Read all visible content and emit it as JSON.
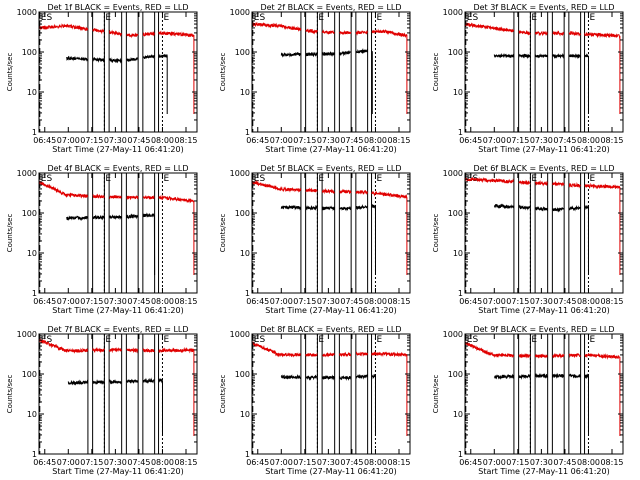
{
  "figure": {
    "background": "#ffffff",
    "axis_color": "#000000",
    "events_color": "#000000",
    "lld_color": "#e00000",
    "marker_color": "#000000"
  },
  "chart_data": [
    {
      "type": "line",
      "title": "Det 1f BLACK = Events, RED = LLD",
      "xlabel": "Start Time (27-May-11 06:41:20)",
      "ylabel": "Counts/sec",
      "yscale": "log",
      "ylim": [
        1,
        1000
      ],
      "xlim": [
        "06:41:20",
        "08:22:00"
      ],
      "x_ticks": [
        "06:45",
        "07:00",
        "07:15",
        "07:30",
        "07:45",
        "08:00",
        "08:15"
      ],
      "y_ticks": [
        "1",
        "10",
        "100",
        "1000"
      ],
      "markers": [
        {
          "label": "ES",
          "time": "06:41:50"
        },
        {
          "label": "E",
          "time": "07:23:00"
        },
        {
          "label": "E",
          "time": "08:00:00"
        }
      ],
      "gaps": [
        [
          "07:12:30",
          "07:15:30"
        ],
        [
          "07:23:00",
          "07:26:00"
        ],
        [
          "07:34:00",
          "07:37:00"
        ],
        [
          "07:44:30",
          "07:47:30"
        ],
        [
          "07:55:00",
          "07:57:30"
        ]
      ],
      "series": [
        {
          "name": "Events",
          "color": "#000000",
          "levels": [
            [
              "06:59:00",
              70
            ],
            [
              "07:35:00",
              60
            ],
            [
              "07:50:00",
              75
            ],
            [
              "08:03:00",
              80
            ]
          ]
        },
        {
          "name": "LLD",
          "color": "#e00000",
          "levels": [
            [
              "06:41:20",
              400
            ],
            [
              "06:59:00",
              450
            ],
            [
              "07:20:00",
              340
            ],
            [
              "07:40:00",
              260
            ],
            [
              "08:00:00",
              300
            ],
            [
              "08:20:00",
              260
            ]
          ]
        }
      ]
    },
    {
      "type": "line",
      "title": "Det 2f BLACK = Events, RED = LLD",
      "xlabel": "Start Time (27-May-11 06:41:20)",
      "ylabel": "Counts/sec",
      "yscale": "log",
      "ylim": [
        1,
        1000
      ],
      "xlim": [
        "06:41:20",
        "08:22:00"
      ],
      "x_ticks": [
        "06:45",
        "07:00",
        "07:15",
        "07:30",
        "07:45",
        "08:00",
        "08:15"
      ],
      "y_ticks": [
        "1",
        "10",
        "100",
        "1000"
      ],
      "markers": [
        {
          "label": "ES",
          "time": "06:41:50"
        },
        {
          "label": "E",
          "time": "07:23:00"
        },
        {
          "label": "E",
          "time": "08:00:00"
        }
      ],
      "gaps": [
        [
          "07:12:30",
          "07:15:30"
        ],
        [
          "07:23:00",
          "07:26:00"
        ],
        [
          "07:34:00",
          "07:37:00"
        ],
        [
          "07:44:30",
          "07:47:30"
        ],
        [
          "07:55:00",
          "07:57:30"
        ]
      ],
      "series": [
        {
          "name": "Events",
          "color": "#000000",
          "levels": [
            [
              "07:00:00",
              85
            ],
            [
              "07:35:00",
              90
            ],
            [
              "07:58:00",
              110
            ]
          ]
        },
        {
          "name": "LLD",
          "color": "#e00000",
          "levels": [
            [
              "06:41:20",
              500
            ],
            [
              "06:59:00",
              450
            ],
            [
              "07:20:00",
              330
            ],
            [
              "07:45:00",
              300
            ],
            [
              "08:05:00",
              330
            ],
            [
              "08:20:00",
              260
            ]
          ]
        }
      ]
    },
    {
      "type": "line",
      "title": "Det 3f BLACK = Events, RED = LLD",
      "xlabel": "Start Time (27-May-11 06:41:20)",
      "ylabel": "Counts/sec",
      "yscale": "log",
      "ylim": [
        1,
        1000
      ],
      "xlim": [
        "06:41:20",
        "08:22:00"
      ],
      "x_ticks": [
        "06:45",
        "07:00",
        "07:15",
        "07:30",
        "07:45",
        "08:00",
        "08:15"
      ],
      "y_ticks": [
        "1",
        "10",
        "100",
        "1000"
      ],
      "markers": [
        {
          "label": "ES",
          "time": "06:41:50"
        },
        {
          "label": "E",
          "time": "07:23:00"
        },
        {
          "label": "E",
          "time": "08:00:00"
        }
      ],
      "gaps": [
        [
          "07:12:30",
          "07:15:30"
        ],
        [
          "07:23:00",
          "07:26:00"
        ],
        [
          "07:34:00",
          "07:37:00"
        ],
        [
          "07:44:30",
          "07:47:30"
        ],
        [
          "07:55:00",
          "07:57:30"
        ]
      ],
      "series": [
        {
          "name": "Events",
          "color": "#000000",
          "levels": [
            [
              "07:00:00",
              80
            ],
            [
              "07:40:00",
              80
            ],
            [
              "08:00:00",
              80
            ]
          ]
        },
        {
          "name": "LLD",
          "color": "#e00000",
          "levels": [
            [
              "06:41:20",
              500
            ],
            [
              "06:59:00",
              400
            ],
            [
              "07:20:00",
              300
            ],
            [
              "07:50:00",
              290
            ],
            [
              "08:20:00",
              250
            ]
          ]
        }
      ]
    },
    {
      "type": "line",
      "title": "Det 4f BLACK = Events, RED = LLD",
      "xlabel": "Start Time (27-May-11 06:41:20)",
      "ylabel": "Counts/sec",
      "yscale": "log",
      "ylim": [
        1,
        1000
      ],
      "xlim": [
        "06:41:20",
        "08:22:00"
      ],
      "x_ticks": [
        "06:45",
        "07:00",
        "07:15",
        "07:30",
        "07:45",
        "08:00",
        "08:15"
      ],
      "y_ticks": [
        "1",
        "10",
        "100",
        "1000"
      ],
      "markers": [
        {
          "label": "ES",
          "time": "06:41:50"
        },
        {
          "label": "E",
          "time": "07:23:00"
        },
        {
          "label": "E",
          "time": "08:00:00"
        }
      ],
      "gaps": [
        [
          "07:12:30",
          "07:15:30"
        ],
        [
          "07:23:00",
          "07:26:00"
        ],
        [
          "07:34:00",
          "07:37:00"
        ],
        [
          "07:44:30",
          "07:47:30"
        ],
        [
          "07:55:00",
          "07:57:30"
        ]
      ],
      "series": [
        {
          "name": "Events",
          "color": "#000000",
          "levels": [
            [
              "06:59:00",
              75
            ],
            [
              "07:35:00",
              80
            ],
            [
              "07:55:00",
              90
            ]
          ]
        },
        {
          "name": "LLD",
          "color": "#e00000",
          "levels": [
            [
              "06:41:20",
              600
            ],
            [
              "06:59:00",
              280
            ],
            [
              "07:30:00",
              250
            ],
            [
              "08:00:00",
              240
            ],
            [
              "08:20:00",
              200
            ]
          ]
        }
      ]
    },
    {
      "type": "line",
      "title": "Det 5f BLACK = Events, RED = LLD",
      "xlabel": "Start Time (27-May-11 06:41:20)",
      "ylabel": "Counts/sec",
      "yscale": "log",
      "ylim": [
        1,
        1000
      ],
      "xlim": [
        "06:41:20",
        "08:22:00"
      ],
      "x_ticks": [
        "06:45",
        "07:00",
        "07:15",
        "07:30",
        "07:45",
        "08:00",
        "08:15"
      ],
      "y_ticks": [
        "1",
        "10",
        "100",
        "1000"
      ],
      "markers": [
        {
          "label": "ES",
          "time": "06:41:50"
        },
        {
          "label": "E",
          "time": "07:23:00"
        },
        {
          "label": "E",
          "time": "08:00:00"
        }
      ],
      "gaps": [
        [
          "07:12:30",
          "07:15:30"
        ],
        [
          "07:23:00",
          "07:26:00"
        ],
        [
          "07:34:00",
          "07:37:00"
        ],
        [
          "07:44:30",
          "07:47:30"
        ],
        [
          "07:55:00",
          "07:57:30"
        ]
      ],
      "series": [
        {
          "name": "Events",
          "color": "#000000",
          "levels": [
            [
              "07:00:00",
              140
            ],
            [
              "07:40:00",
              130
            ],
            [
              "08:00:00",
              150
            ]
          ]
        },
        {
          "name": "LLD",
          "color": "#e00000",
          "levels": [
            [
              "06:41:20",
              600
            ],
            [
              "06:59:00",
              400
            ],
            [
              "07:30:00",
              350
            ],
            [
              "07:55:00",
              330
            ],
            [
              "08:20:00",
              250
            ]
          ]
        }
      ]
    },
    {
      "type": "line",
      "title": "Det 6f BLACK = Events, RED = LLD",
      "xlabel": "Start Time (27-May-11 06:41:20)",
      "ylabel": "Counts/sec",
      "yscale": "log",
      "ylim": [
        1,
        1000
      ],
      "xlim": [
        "06:41:20",
        "08:22:00"
      ],
      "x_ticks": [
        "06:45",
        "07:00",
        "07:15",
        "07:30",
        "07:45",
        "08:00",
        "08:15"
      ],
      "y_ticks": [
        "1",
        "10",
        "100",
        "1000"
      ],
      "markers": [
        {
          "label": "ES",
          "time": "06:41:50"
        },
        {
          "label": "E",
          "time": "07:23:00"
        },
        {
          "label": "E",
          "time": "08:00:00"
        }
      ],
      "gaps": [
        [
          "07:12:30",
          "07:15:30"
        ],
        [
          "07:23:00",
          "07:26:00"
        ],
        [
          "07:34:00",
          "07:37:00"
        ],
        [
          "07:44:30",
          "07:47:30"
        ],
        [
          "07:55:00",
          "07:57:30"
        ]
      ],
      "series": [
        {
          "name": "Events",
          "color": "#000000",
          "levels": [
            [
              "07:00:00",
              150
            ],
            [
              "07:40:00",
              120
            ],
            [
              "08:00:00",
              140
            ]
          ]
        },
        {
          "name": "LLD",
          "color": "#e00000",
          "levels": [
            [
              "06:41:20",
              700
            ],
            [
              "07:00:00",
              650
            ],
            [
              "07:30:00",
              550
            ],
            [
              "08:00:00",
              480
            ],
            [
              "08:20:00",
              450
            ]
          ]
        }
      ]
    },
    {
      "type": "line",
      "title": "Det 7f BLACK = Events, RED = LLD",
      "xlabel": "Start Time (27-May-11 06:41:20)",
      "ylabel": "Counts/sec",
      "yscale": "log",
      "ylim": [
        1,
        1000
      ],
      "xlim": [
        "06:41:20",
        "08:22:00"
      ],
      "x_ticks": [
        "06:45",
        "07:00",
        "07:15",
        "07:30",
        "07:45",
        "08:00",
        "08:15"
      ],
      "y_ticks": [
        "1",
        "10",
        "100",
        "1000"
      ],
      "markers": [
        {
          "label": "ES",
          "time": "06:41:50"
        },
        {
          "label": "E",
          "time": "07:23:00"
        },
        {
          "label": "E",
          "time": "08:00:00"
        }
      ],
      "gaps": [
        [
          "07:12:30",
          "07:15:30"
        ],
        [
          "07:23:00",
          "07:26:00"
        ],
        [
          "07:34:00",
          "07:37:00"
        ],
        [
          "07:44:30",
          "07:47:30"
        ],
        [
          "07:55:00",
          "07:57:30"
        ]
      ],
      "series": [
        {
          "name": "Events",
          "color": "#000000",
          "levels": [
            [
              "07:00:00",
              60
            ],
            [
              "07:35:00",
              65
            ],
            [
              "08:00:00",
              70
            ]
          ]
        },
        {
          "name": "LLD",
          "color": "#e00000",
          "levels": [
            [
              "06:41:20",
              700
            ],
            [
              "06:59:00",
              380
            ],
            [
              "07:30:00",
              400
            ],
            [
              "08:00:00",
              380
            ],
            [
              "08:20:00",
              400
            ]
          ]
        }
      ]
    },
    {
      "type": "line",
      "title": "Det 8f BLACK = Events, RED = LLD",
      "xlabel": "Start Time (27-May-11 06:41:20)",
      "ylabel": "Counts/sec",
      "yscale": "log",
      "ylim": [
        1,
        1000
      ],
      "xlim": [
        "06:41:20",
        "08:22:00"
      ],
      "x_ticks": [
        "06:45",
        "07:00",
        "07:15",
        "07:30",
        "07:45",
        "08:00",
        "08:15"
      ],
      "y_ticks": [
        "1",
        "10",
        "100",
        "1000"
      ],
      "markers": [
        {
          "label": "ES",
          "time": "06:41:50"
        },
        {
          "label": "E",
          "time": "07:23:00"
        },
        {
          "label": "E",
          "time": "08:00:00"
        }
      ],
      "gaps": [
        [
          "07:12:30",
          "07:15:30"
        ],
        [
          "07:23:00",
          "07:26:00"
        ],
        [
          "07:34:00",
          "07:37:00"
        ],
        [
          "07:44:30",
          "07:47:30"
        ],
        [
          "07:55:00",
          "07:57:30"
        ]
      ],
      "series": [
        {
          "name": "Events",
          "color": "#000000",
          "levels": [
            [
              "07:00:00",
              85
            ],
            [
              "07:40:00",
              80
            ],
            [
              "08:00:00",
              90
            ]
          ]
        },
        {
          "name": "LLD",
          "color": "#e00000",
          "levels": [
            [
              "06:41:20",
              600
            ],
            [
              "06:59:00",
              300
            ],
            [
              "07:30:00",
              300
            ],
            [
              "08:00:00",
              320
            ],
            [
              "08:20:00",
              300
            ]
          ]
        }
      ]
    },
    {
      "type": "line",
      "title": "Det 9f BLACK = Events, RED = LLD",
      "xlabel": "Start Time (27-May-11 06:41:20)",
      "ylabel": "Counts/sec",
      "yscale": "log",
      "ylim": [
        1,
        1000
      ],
      "xlim": [
        "06:41:20",
        "08:22:00"
      ],
      "x_ticks": [
        "06:45",
        "07:00",
        "07:15",
        "07:30",
        "07:45",
        "08:00",
        "08:15"
      ],
      "y_ticks": [
        "1",
        "10",
        "100",
        "1000"
      ],
      "markers": [
        {
          "label": "ES",
          "time": "06:41:50"
        },
        {
          "label": "E",
          "time": "07:23:00"
        },
        {
          "label": "E",
          "time": "08:00:00"
        }
      ],
      "gaps": [
        [
          "07:12:30",
          "07:15:30"
        ],
        [
          "07:23:00",
          "07:26:00"
        ],
        [
          "07:34:00",
          "07:37:00"
        ],
        [
          "07:44:30",
          "07:47:30"
        ],
        [
          "07:55:00",
          "07:57:30"
        ]
      ],
      "series": [
        {
          "name": "Events",
          "color": "#000000",
          "levels": [
            [
              "07:00:00",
              85
            ],
            [
              "07:40:00",
              90
            ],
            [
              "08:00:00",
              90
            ]
          ]
        },
        {
          "name": "LLD",
          "color": "#e00000",
          "levels": [
            [
              "06:41:20",
              600
            ],
            [
              "06:59:00",
              300
            ],
            [
              "07:30:00",
              280
            ],
            [
              "08:00:00",
              300
            ],
            [
              "08:20:00",
              260
            ]
          ]
        }
      ]
    }
  ]
}
